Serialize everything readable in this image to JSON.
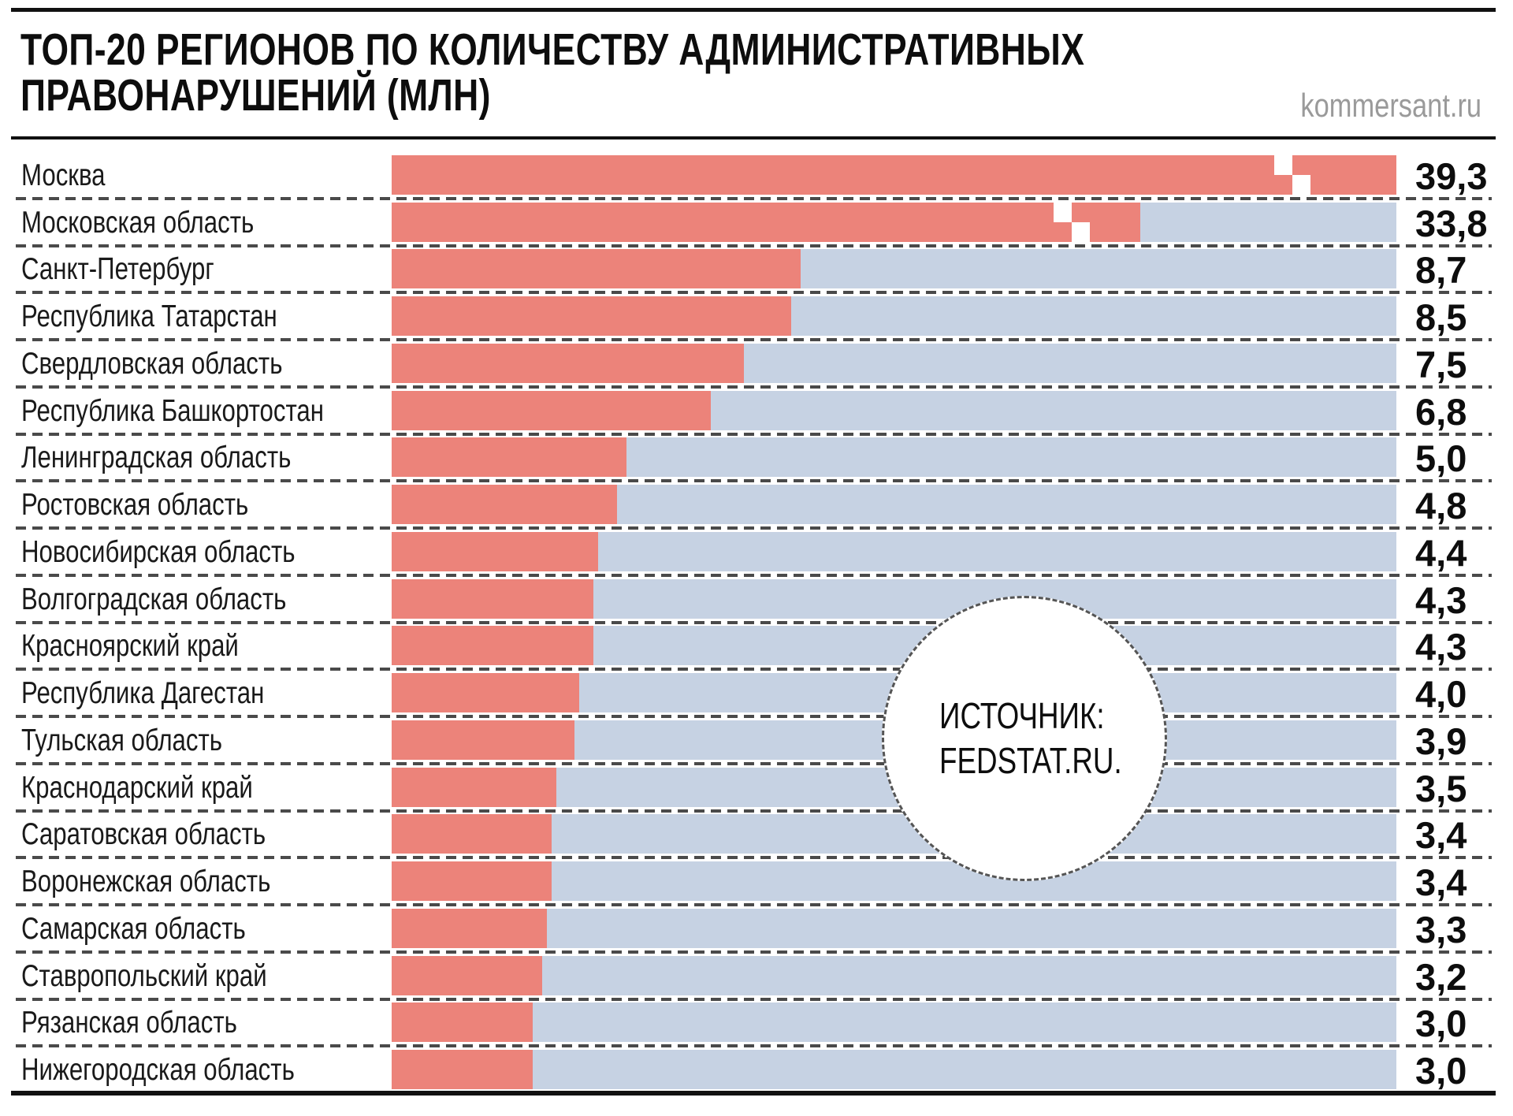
{
  "header": {
    "title_line1": "ТОП-20 РЕГИОНОВ ПО КОЛИЧЕСТВУ АДМИНИСТРАТИВНЫХ",
    "title_line2": "ПРАВОНАРУШЕНИЙ (МЛН)",
    "brand": "kommersant.ru"
  },
  "source_badge": {
    "line1": "ИСТОЧНИК:",
    "line2": "FEDSTAT.RU."
  },
  "colors": {
    "bar": "#ec837a",
    "track": "#c6d2e3",
    "separator": "#4a4a4a",
    "brand_text": "#9a9a9a",
    "rule": "#111111",
    "break_mark": "#ffffff"
  },
  "chart_data": {
    "type": "bar",
    "orientation": "horizontal",
    "title": "ТОП-20 РЕГИОНОВ ПО КОЛИЧЕСТВУ АДМИНИСТРАТИВНЫХ ПРАВОНАРУШЕНИЙ (МЛН)",
    "unit": "млн",
    "source": "ИСТОЧНИК: FEDSTAT.RU.",
    "legend": "none",
    "grid": "dashed row separators",
    "axis_note": "no numeric axis; values printed right of each bar; top two bars truncated with white axis-break marks",
    "categories": [
      "Москва",
      "Московская область",
      "Санкт-Петербург",
      "Республика Татарстан",
      "Свердловская область",
      "Республика Башкортостан",
      "Ленинградская область",
      "Ростовская область",
      "Новосибирская область",
      "Волгоградская область",
      "Красноярский край",
      "Республика Дагестан",
      "Тульская область",
      "Краснодарский край",
      "Саратовская область",
      "Воронежская область",
      "Самарская область",
      "Ставропольский край",
      "Рязанская область",
      "Нижегородская область"
    ],
    "values": [
      39.3,
      33.8,
      8.7,
      8.5,
      7.5,
      6.8,
      5.0,
      4.8,
      4.4,
      4.3,
      4.3,
      4.0,
      3.9,
      3.5,
      3.4,
      3.4,
      3.3,
      3.2,
      3.0,
      3.0
    ],
    "value_labels": [
      "39,3",
      "33,8",
      "8,7",
      "8,5",
      "7,5",
      "6,8",
      "5,0",
      "4,8",
      "4,4",
      "4,3",
      "4,3",
      "4,0",
      "3,9",
      "3,5",
      "3,4",
      "3,4",
      "3,3",
      "3,2",
      "3,0",
      "3,0"
    ],
    "truncated": [
      true,
      true,
      false,
      false,
      false,
      false,
      false,
      false,
      false,
      false,
      false,
      false,
      false,
      false,
      false,
      false,
      false,
      false,
      false,
      false
    ]
  }
}
